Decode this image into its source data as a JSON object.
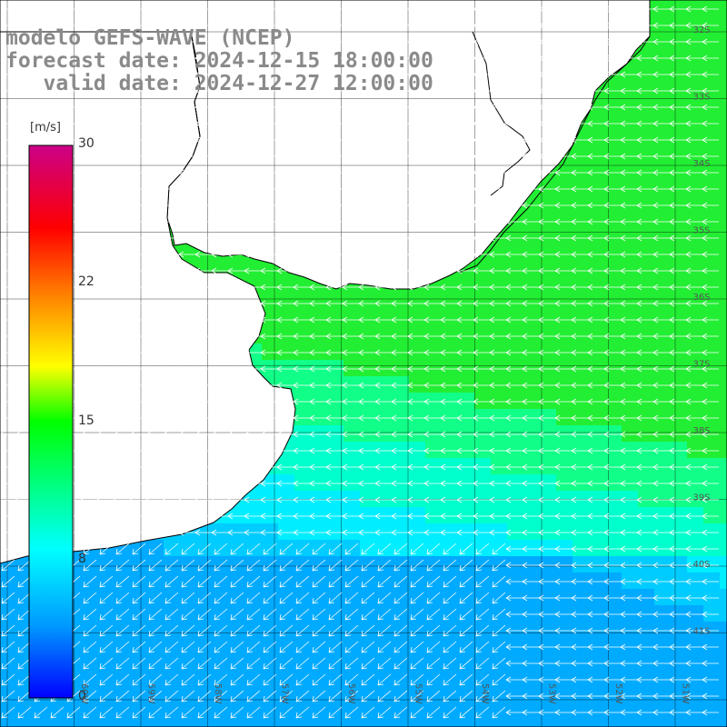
{
  "title": {
    "model": "modelo GEFS-WAVE (NCEP)",
    "forecast": "forecast date: 2024-12-15 18:00:00",
    "valid": "   valid date: 2024-12-27 12:00:00"
  },
  "colorbar": {
    "unit": "[m/s]",
    "ticks": [
      "30",
      "22",
      "15",
      "8",
      "0"
    ],
    "colors": [
      "#0000ff",
      "#00aaff",
      "#00ffff",
      "#00ff00",
      "#ffff00",
      "#ff8000",
      "#ff0000",
      "#cc0088"
    ]
  },
  "map": {
    "lat_labels": [
      "32S",
      "33S",
      "34S",
      "35S",
      "36S",
      "37S",
      "38S",
      "39S",
      "40S",
      "41S"
    ],
    "lon_labels": [
      "60W",
      "59W",
      "58W",
      "57W",
      "56W",
      "55W",
      "54W",
      "53W",
      "52W",
      "51W"
    ],
    "land_color": "#ffffff",
    "wind_arrow_color": "#ffffff"
  }
}
